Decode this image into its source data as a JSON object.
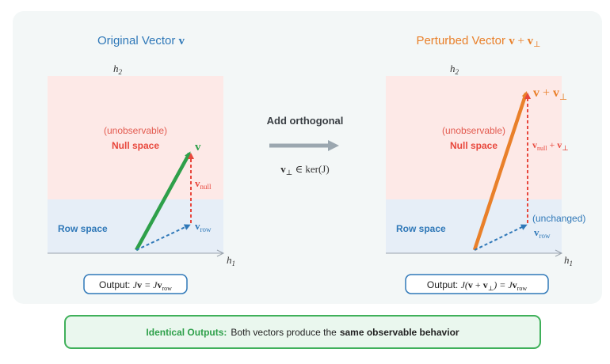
{
  "left": {
    "title_text": "Original Vector",
    "title_math": "v",
    "axis_y": "h",
    "axis_y_sub": "2",
    "axis_x": "h",
    "axis_x_sub": "1",
    "null_caption": "(unobservable)",
    "null_label": "Null space",
    "row_label": "Row space",
    "v_label": "v",
    "v_null_main": "v",
    "v_null_sub": "null",
    "v_row_main": "v",
    "v_row_sub": "row",
    "output_prefix": "Output:",
    "output_math_1": "J",
    "output_math_2": "v",
    "output_math_3": " = J",
    "output_math_4": "v",
    "output_math_5": "row"
  },
  "middle": {
    "label": "Add orthogonal",
    "formula_v": "v",
    "formula_perp": "⊥",
    "formula_rest": " ∈ ker(J)"
  },
  "right": {
    "title_text": "Perturbed Vector",
    "title_math_1": "v",
    "title_math_2": " + ",
    "title_math_3": "v",
    "title_math_4": "⊥",
    "axis_y": "h",
    "axis_y_sub": "2",
    "axis_x": "h",
    "axis_x_sub": "1",
    "null_caption": "(unobservable)",
    "null_label": "Null space",
    "row_label": "Row space",
    "sum_1": "v",
    "sum_2": " + ",
    "sum_3": "v",
    "sum_4": "⊥",
    "vnp_1": "v",
    "vnp_2": "null",
    "vnp_3": " + ",
    "vnp_4": "v",
    "vnp_5": "⊥",
    "unchanged": "(unchanged)",
    "v_row_main": "v",
    "v_row_sub": "row",
    "output_prefix": "Output:",
    "output_math": "J(",
    "output_v1": "v",
    "output_plus": " + ",
    "output_v2": "v",
    "output_perp": "⊥",
    "output_mid": ") = J",
    "output_v3": "v",
    "output_row": "row"
  },
  "summary": {
    "lead": "Identical Outputs:",
    "text": "Both vectors produce the",
    "bold": "same observable behavior"
  },
  "colors": {
    "null_space": "#fde9e7",
    "row_space": "#e6eef7",
    "green": "#2ea04a",
    "red": "#e8473c",
    "blue": "#2f78b8",
    "orange": "#e9802a",
    "gray": "#9ba7b0"
  }
}
